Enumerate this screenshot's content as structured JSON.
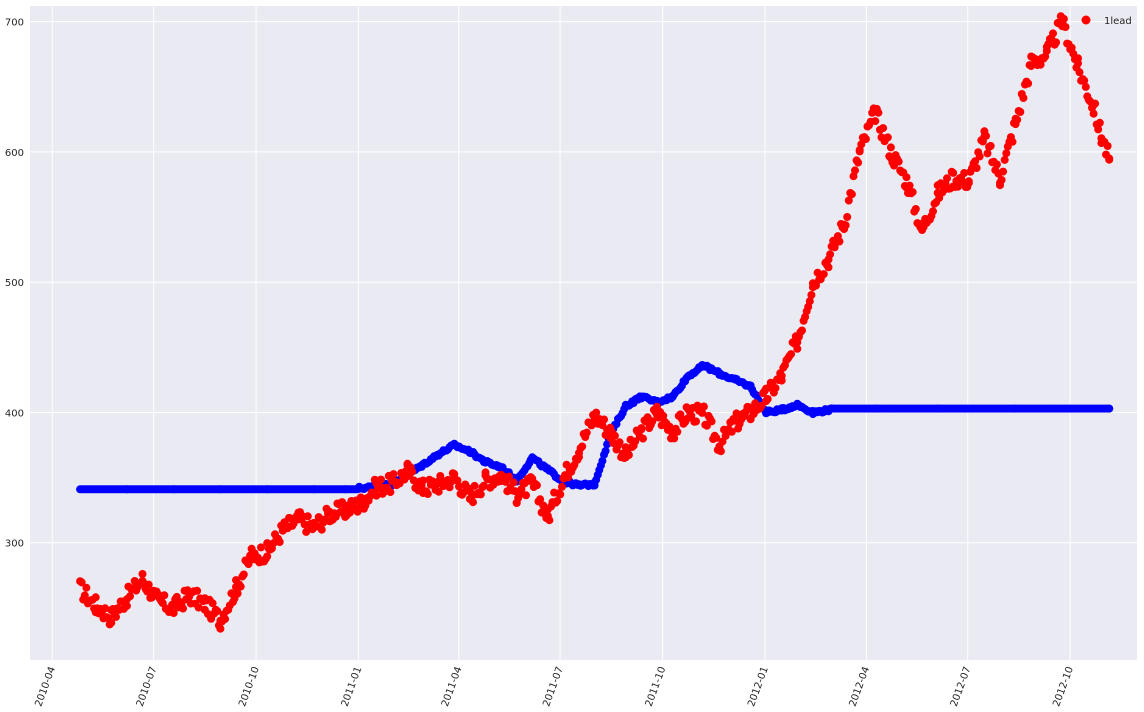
{
  "chart_data": {
    "type": "scatter",
    "title": "",
    "xlabel": "",
    "ylabel": "",
    "grid": true,
    "legend": {
      "position": "top-right",
      "entries": [
        "1lead"
      ]
    },
    "xlim": [
      "2010-03-12",
      "2012-11-30"
    ],
    "ylim": [
      210,
      712
    ],
    "x_ticks": [
      "2010-04",
      "2010-07",
      "2010-10",
      "2011-01",
      "2011-04",
      "2011-07",
      "2011-10",
      "2012-01",
      "2012-04",
      "2012-07",
      "2012-10"
    ],
    "y_ticks": [
      300,
      400,
      500,
      600,
      700
    ],
    "colors": {
      "background": "#EAEAF2",
      "grid": "#ffffff",
      "lead": "#ff0000",
      "prediction": "#0000ff"
    },
    "series": [
      {
        "name": "1lead",
        "color": "#ff0000",
        "points": [
          [
            "2010-04-26",
            265
          ],
          [
            "2010-05-10",
            252
          ],
          [
            "2010-05-24",
            243
          ],
          [
            "2010-06-07",
            258
          ],
          [
            "2010-06-21",
            272
          ],
          [
            "2010-07-05",
            255
          ],
          [
            "2010-07-19",
            250
          ],
          [
            "2010-08-02",
            260
          ],
          [
            "2010-08-16",
            253
          ],
          [
            "2010-08-30",
            241
          ],
          [
            "2010-09-13",
            265
          ],
          [
            "2010-09-27",
            290
          ],
          [
            "2010-10-11",
            293
          ],
          [
            "2010-10-25",
            310
          ],
          [
            "2010-11-08",
            318
          ],
          [
            "2010-11-22",
            312
          ],
          [
            "2010-12-06",
            322
          ],
          [
            "2010-12-20",
            325
          ],
          [
            "2011-01-03",
            330
          ],
          [
            "2011-01-17",
            343
          ],
          [
            "2011-01-31",
            345
          ],
          [
            "2011-02-14",
            355
          ],
          [
            "2011-02-28",
            342
          ],
          [
            "2011-03-14",
            345
          ],
          [
            "2011-03-28",
            350
          ],
          [
            "2011-04-11",
            335
          ],
          [
            "2011-04-25",
            348
          ],
          [
            "2011-05-09",
            352
          ],
          [
            "2011-05-23",
            337
          ],
          [
            "2011-06-06",
            345
          ],
          [
            "2011-06-20",
            320
          ],
          [
            "2011-07-04",
            350
          ],
          [
            "2011-07-18",
            372
          ],
          [
            "2011-08-01",
            398
          ],
          [
            "2011-08-15",
            385
          ],
          [
            "2011-08-29",
            367
          ],
          [
            "2011-09-12",
            385
          ],
          [
            "2011-09-26",
            400
          ],
          [
            "2011-10-10",
            385
          ],
          [
            "2011-10-24",
            400
          ],
          [
            "2011-11-07",
            398
          ],
          [
            "2011-11-21",
            375
          ],
          [
            "2011-12-05",
            392
          ],
          [
            "2011-12-19",
            400
          ],
          [
            "2012-01-02",
            412
          ],
          [
            "2012-01-16",
            428
          ],
          [
            "2012-01-30",
            455
          ],
          [
            "2012-02-13",
            500
          ],
          [
            "2012-02-27",
            518
          ],
          [
            "2012-03-12",
            545
          ],
          [
            "2012-03-26",
            600
          ],
          [
            "2012-04-09",
            630
          ],
          [
            "2012-04-23",
            600
          ],
          [
            "2012-05-07",
            578
          ],
          [
            "2012-05-21",
            540
          ],
          [
            "2012-06-04",
            568
          ],
          [
            "2012-06-18",
            580
          ],
          [
            "2012-07-02",
            578
          ],
          [
            "2012-07-16",
            610
          ],
          [
            "2012-07-30",
            580
          ],
          [
            "2012-08-13",
            622
          ],
          [
            "2012-08-27",
            668
          ],
          [
            "2012-09-10",
            675
          ],
          [
            "2012-09-24",
            700
          ],
          [
            "2012-10-08",
            665
          ],
          [
            "2012-10-22",
            635
          ],
          [
            "2012-10-29",
            612
          ],
          [
            "2012-11-05",
            595
          ]
        ]
      },
      {
        "name": "",
        "color": "#0000ff",
        "points": [
          [
            "2010-04-26",
            341
          ],
          [
            "2010-06-07",
            341
          ],
          [
            "2010-07-19",
            341
          ],
          [
            "2010-08-30",
            341
          ],
          [
            "2010-10-11",
            341
          ],
          [
            "2010-11-22",
            341
          ],
          [
            "2010-12-20",
            341
          ],
          [
            "2011-01-17",
            343
          ],
          [
            "2011-01-31",
            345
          ],
          [
            "2011-02-14",
            352
          ],
          [
            "2011-02-28",
            360
          ],
          [
            "2011-03-14",
            368
          ],
          [
            "2011-03-28",
            375
          ],
          [
            "2011-04-11",
            370
          ],
          [
            "2011-04-25",
            362
          ],
          [
            "2011-05-09",
            358
          ],
          [
            "2011-05-23",
            348
          ],
          [
            "2011-06-06",
            365
          ],
          [
            "2011-06-20",
            356
          ],
          [
            "2011-07-04",
            347
          ],
          [
            "2011-07-18",
            344
          ],
          [
            "2011-08-01",
            345
          ],
          [
            "2011-08-15",
            383
          ],
          [
            "2011-08-29",
            405
          ],
          [
            "2011-09-12",
            412
          ],
          [
            "2011-09-26",
            408
          ],
          [
            "2011-10-10",
            412
          ],
          [
            "2011-10-24",
            428
          ],
          [
            "2011-11-07",
            436
          ],
          [
            "2011-11-21",
            430
          ],
          [
            "2011-12-05",
            425
          ],
          [
            "2011-12-19",
            420
          ],
          [
            "2012-01-02",
            400
          ],
          [
            "2012-01-16",
            402
          ],
          [
            "2012-01-30",
            406
          ],
          [
            "2012-02-13",
            400
          ],
          [
            "2012-02-27",
            402
          ],
          [
            "2012-04-09",
            403
          ],
          [
            "2012-06-04",
            403
          ],
          [
            "2012-08-13",
            403
          ],
          [
            "2012-11-05",
            403
          ]
        ]
      }
    ]
  }
}
